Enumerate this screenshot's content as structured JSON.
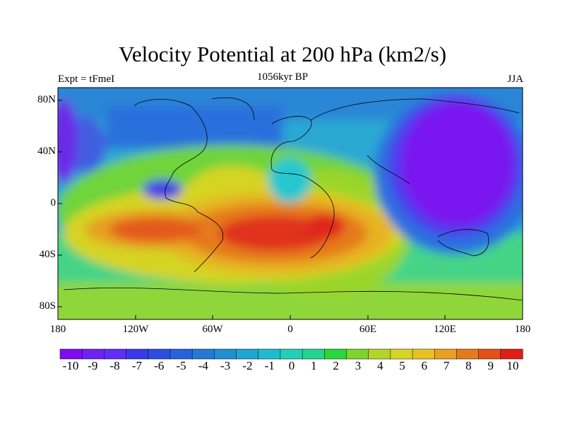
{
  "title": "Velocity Potential at 200 hPa (km2/s)",
  "left_annotation": "Expt = tFmeI",
  "center_annotation": "1056kyr BP",
  "right_annotation": "JJA",
  "lat_ticks": [
    "80N",
    "40N",
    "0",
    "40S",
    "80S"
  ],
  "lon_ticks": [
    "180",
    "120W",
    "60W",
    "0",
    "60E",
    "120E",
    "180"
  ],
  "colorbar": {
    "labels": [
      "-10",
      "-9",
      "-8",
      "-7",
      "-6",
      "-5",
      "-4",
      "-3",
      "-2",
      "-1",
      "0",
      "1",
      "2",
      "3",
      "4",
      "5",
      "6",
      "7",
      "8",
      "9",
      "10"
    ],
    "colors": [
      "#7e0ef0",
      "#7022f2",
      "#5f2ff4",
      "#3a3ae8",
      "#2d4ce2",
      "#2563d8",
      "#2379d4",
      "#2190d2",
      "#1fa6d2",
      "#1fbcd0",
      "#22d0b8",
      "#23d48f",
      "#2ad63b",
      "#7ed42c",
      "#b6d427",
      "#d6d424",
      "#e6c321",
      "#e8a01e",
      "#e57a1c",
      "#e4501a",
      "#e01e18"
    ]
  },
  "chart_data": {
    "type": "heatmap",
    "title": "Velocity Potential at 200 hPa (km2/s)",
    "variable": "Velocity Potential at 200 hPa",
    "units": "km2/s",
    "experiment": "tFmeI",
    "time": "1056kyr BP",
    "season": "JJA",
    "lon_range": [
      -180,
      180
    ],
    "lat_range": [
      -90,
      90
    ],
    "value_range": [
      -10,
      10
    ],
    "features": [
      {
        "name": "strong negative center over Asia / western Pacific",
        "lon": 120,
        "lat": 25,
        "value": -10
      },
      {
        "name": "negative center over eastern Pacific / Central America",
        "lon": -100,
        "lat": 10,
        "value": -7
      },
      {
        "name": "positive maximum over South Atlantic",
        "lon": -20,
        "lat": -25,
        "value": 10
      },
      {
        "name": "positive center over southern Africa",
        "lon": 30,
        "lat": -20,
        "value": 9
      },
      {
        "name": "positive lobe over South Pacific",
        "lon": -110,
        "lat": -20,
        "value": 8
      }
    ]
  }
}
